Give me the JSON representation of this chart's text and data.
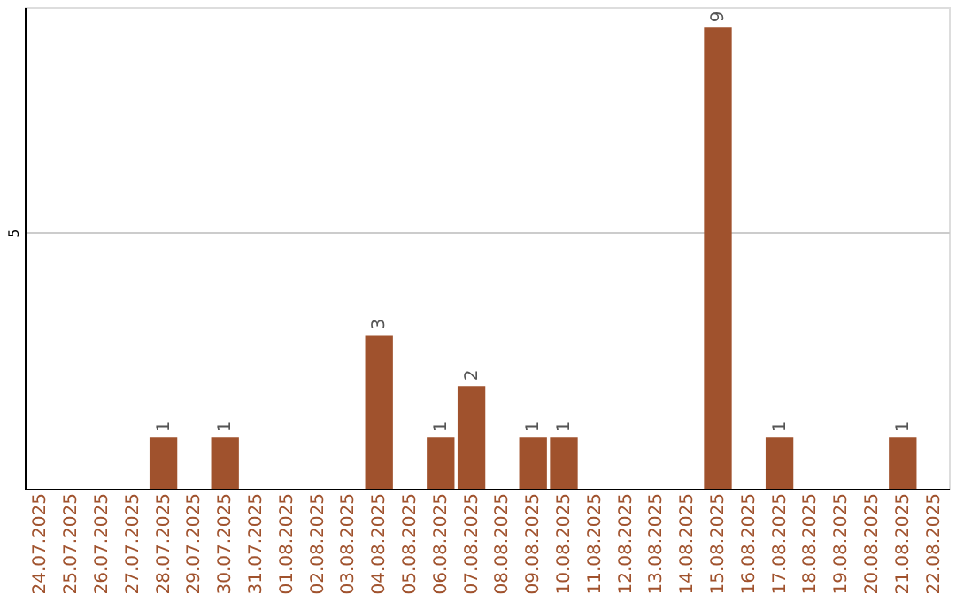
{
  "chart_data": {
    "type": "bar",
    "categories": [
      "24.07.2025",
      "25.07.2025",
      "26.07.2025",
      "27.07.2025",
      "28.07.2025",
      "29.07.2025",
      "30.07.2025",
      "31.07.2025",
      "01.08.2025",
      "02.08.2025",
      "03.08.2025",
      "04.08.2025",
      "05.08.2025",
      "06.08.2025",
      "07.08.2025",
      "08.08.2025",
      "09.08.2025",
      "10.08.2025",
      "11.08.2025",
      "12.08.2025",
      "13.08.2025",
      "14.08.2025",
      "15.08.2025",
      "16.08.2025",
      "17.08.2025",
      "18.08.2025",
      "19.08.2025",
      "20.08.2025",
      "21.08.2025",
      "22.08.2025"
    ],
    "values": [
      null,
      null,
      null,
      null,
      1,
      null,
      1,
      null,
      null,
      null,
      null,
      3,
      null,
      1,
      2,
      null,
      1,
      1,
      null,
      null,
      null,
      null,
      9,
      null,
      1,
      null,
      null,
      null,
      1,
      null
    ],
    "color": "#a0522d",
    "ylim": [
      0,
      9.4
    ],
    "yticks": [
      5
    ],
    "grid": "y",
    "data_labels": true
  }
}
